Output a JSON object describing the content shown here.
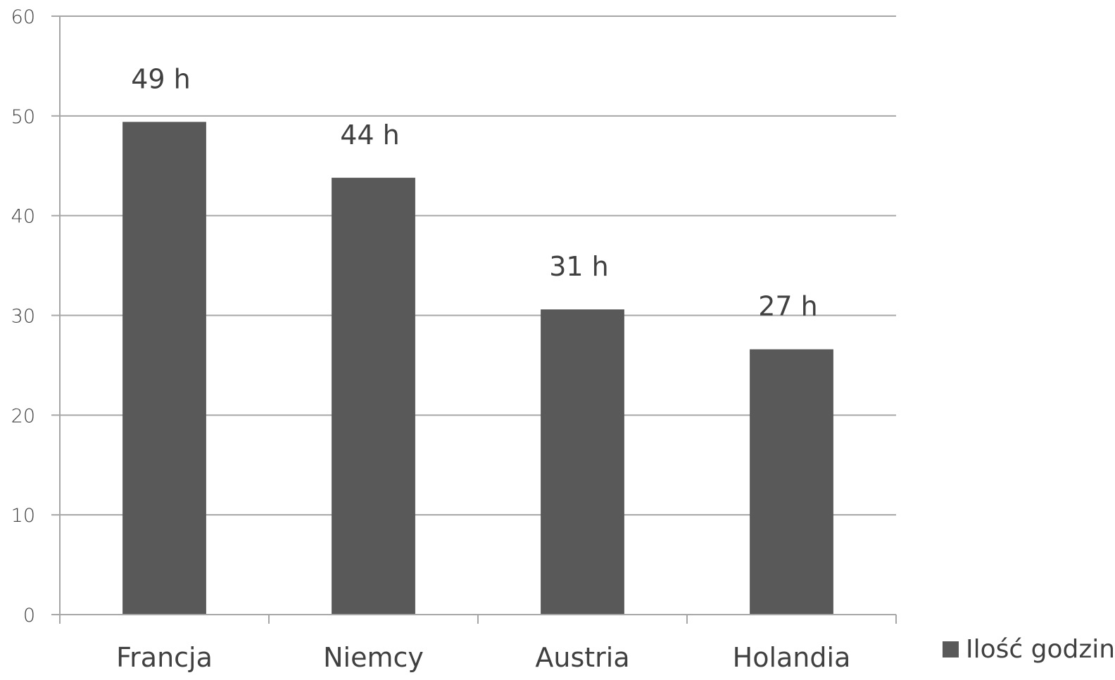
{
  "chart_data": {
    "type": "bar",
    "categories": [
      "Francja",
      "Niemcy",
      "Austria",
      "Holandia"
    ],
    "series": [
      {
        "name": "Ilość godzin",
        "values": [
          49.4,
          43.8,
          30.6,
          26.6
        ],
        "data_labels": [
          "49 h",
          "44 h",
          "31 h",
          "27 h"
        ]
      }
    ],
    "ylim": [
      0,
      60
    ],
    "yticks": [
      "0",
      "10",
      "20",
      "30",
      "40",
      "50",
      "60"
    ],
    "ytick_values": [
      0,
      10,
      20,
      30,
      40,
      50,
      60
    ],
    "grid": true,
    "legend_position": "bottom-right",
    "colors": {
      "bar": "#595959",
      "grid": "#a6a6a6",
      "text": "#404040"
    }
  }
}
